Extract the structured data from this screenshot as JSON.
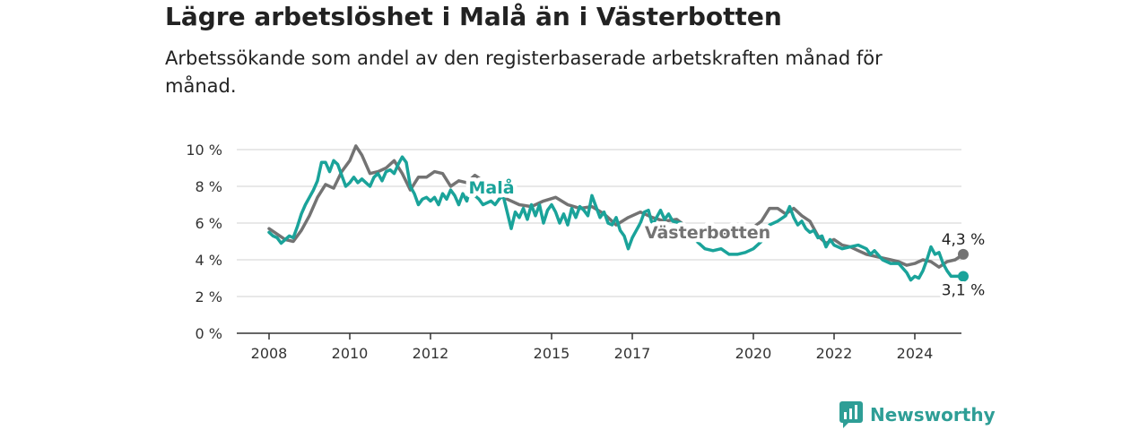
{
  "title": "Lägre arbetslöshet i Malå än i Västerbotten",
  "subtitle": "Arbetssökande som andel av den registerbaserade arbetskraften månad för månad.",
  "brand": "Newsworthy",
  "colors": {
    "mala": "#1aa39a",
    "vasterbotten": "#737373",
    "grid": "#d9d9d9",
    "axis": "#333333"
  },
  "chart_data": {
    "type": "line",
    "x_unit": "year",
    "xlim": [
      2007.5,
      2025.9
    ],
    "ylim": [
      0,
      10
    ],
    "y_ticks": [
      "0 %",
      "2 %",
      "4 %",
      "6 %",
      "8 %",
      "10 %"
    ],
    "x_ticks": [
      "2008",
      "2010",
      "2012",
      "2015",
      "2017",
      "2020",
      "2022",
      "2024"
    ],
    "grid": true,
    "series": [
      {
        "name": "Västerbotten",
        "color_key": "vasterbotten",
        "end_label": "4,3 %",
        "points": [
          [
            2008.0,
            5.7
          ],
          [
            2008.2,
            5.4
          ],
          [
            2008.4,
            5.1
          ],
          [
            2008.6,
            5.0
          ],
          [
            2008.8,
            5.6
          ],
          [
            2009.0,
            6.4
          ],
          [
            2009.2,
            7.4
          ],
          [
            2009.4,
            8.1
          ],
          [
            2009.6,
            7.9
          ],
          [
            2009.8,
            8.8
          ],
          [
            2010.0,
            9.4
          ],
          [
            2010.15,
            10.2
          ],
          [
            2010.3,
            9.7
          ],
          [
            2010.5,
            8.7
          ],
          [
            2010.7,
            8.8
          ],
          [
            2010.9,
            9.0
          ],
          [
            2011.1,
            9.4
          ],
          [
            2011.3,
            8.7
          ],
          [
            2011.5,
            7.8
          ],
          [
            2011.7,
            8.5
          ],
          [
            2011.9,
            8.5
          ],
          [
            2012.1,
            8.8
          ],
          [
            2012.3,
            8.7
          ],
          [
            2012.5,
            8.0
          ],
          [
            2012.7,
            8.3
          ],
          [
            2012.9,
            8.2
          ],
          [
            2013.1,
            8.6
          ],
          [
            2013.3,
            8.3
          ],
          [
            2013.6,
            7.7
          ],
          [
            2013.9,
            7.3
          ],
          [
            2014.2,
            7.0
          ],
          [
            2014.5,
            6.9
          ],
          [
            2014.8,
            7.2
          ],
          [
            2015.1,
            7.4
          ],
          [
            2015.4,
            7.0
          ],
          [
            2015.7,
            6.8
          ],
          [
            2016.0,
            6.9
          ],
          [
            2016.3,
            6.5
          ],
          [
            2016.6,
            5.9
          ],
          [
            2016.9,
            6.3
          ],
          [
            2017.2,
            6.6
          ],
          [
            2017.5,
            6.3
          ],
          [
            2017.8,
            6.1
          ],
          [
            2018.1,
            6.2
          ],
          [
            2018.4,
            5.7
          ],
          [
            2018.7,
            5.4
          ],
          [
            2019.0,
            5.3
          ],
          [
            2019.3,
            5.4
          ],
          [
            2019.6,
            5.5
          ],
          [
            2019.9,
            5.6
          ],
          [
            2020.2,
            6.1
          ],
          [
            2020.4,
            6.8
          ],
          [
            2020.6,
            6.8
          ],
          [
            2020.8,
            6.5
          ],
          [
            2021.0,
            6.8
          ],
          [
            2021.2,
            6.4
          ],
          [
            2021.4,
            6.1
          ],
          [
            2021.6,
            5.3
          ],
          [
            2021.8,
            4.9
          ],
          [
            2022.0,
            5.1
          ],
          [
            2022.2,
            4.8
          ],
          [
            2022.4,
            4.7
          ],
          [
            2022.6,
            4.5
          ],
          [
            2022.8,
            4.3
          ],
          [
            2023.0,
            4.2
          ],
          [
            2023.2,
            4.1
          ],
          [
            2023.4,
            4.0
          ],
          [
            2023.6,
            3.9
          ],
          [
            2023.8,
            3.7
          ],
          [
            2024.0,
            3.8
          ],
          [
            2024.2,
            4.0
          ],
          [
            2024.4,
            3.9
          ],
          [
            2024.6,
            3.6
          ],
          [
            2024.8,
            3.9
          ],
          [
            2025.0,
            4.0
          ],
          [
            2025.2,
            4.3
          ]
        ]
      },
      {
        "name": "Malå",
        "color_key": "mala",
        "end_label": "3,1 %",
        "points": [
          [
            2008.0,
            5.5
          ],
          [
            2008.1,
            5.3
          ],
          [
            2008.2,
            5.2
          ],
          [
            2008.3,
            4.9
          ],
          [
            2008.4,
            5.1
          ],
          [
            2008.5,
            5.3
          ],
          [
            2008.6,
            5.2
          ],
          [
            2008.7,
            5.8
          ],
          [
            2008.8,
            6.5
          ],
          [
            2008.9,
            7.0
          ],
          [
            2009.0,
            7.4
          ],
          [
            2009.1,
            7.8
          ],
          [
            2009.2,
            8.3
          ],
          [
            2009.3,
            9.3
          ],
          [
            2009.4,
            9.3
          ],
          [
            2009.5,
            8.8
          ],
          [
            2009.6,
            9.4
          ],
          [
            2009.7,
            9.2
          ],
          [
            2009.8,
            8.6
          ],
          [
            2009.9,
            8.0
          ],
          [
            2010.0,
            8.2
          ],
          [
            2010.1,
            8.5
          ],
          [
            2010.2,
            8.2
          ],
          [
            2010.3,
            8.4
          ],
          [
            2010.4,
            8.2
          ],
          [
            2010.5,
            8.0
          ],
          [
            2010.6,
            8.5
          ],
          [
            2010.7,
            8.7
          ],
          [
            2010.8,
            8.3
          ],
          [
            2010.9,
            8.8
          ],
          [
            2011.0,
            8.9
          ],
          [
            2011.1,
            8.7
          ],
          [
            2011.2,
            9.2
          ],
          [
            2011.3,
            9.6
          ],
          [
            2011.4,
            9.3
          ],
          [
            2011.5,
            8.0
          ],
          [
            2011.6,
            7.6
          ],
          [
            2011.7,
            7.0
          ],
          [
            2011.8,
            7.3
          ],
          [
            2011.9,
            7.4
          ],
          [
            2012.0,
            7.2
          ],
          [
            2012.1,
            7.4
          ],
          [
            2012.2,
            7.0
          ],
          [
            2012.3,
            7.6
          ],
          [
            2012.4,
            7.3
          ],
          [
            2012.5,
            7.8
          ],
          [
            2012.6,
            7.5
          ],
          [
            2012.7,
            7.0
          ],
          [
            2012.8,
            7.6
          ],
          [
            2012.9,
            7.2
          ],
          [
            2013.0,
            8.1
          ],
          [
            2013.1,
            7.5
          ],
          [
            2013.2,
            7.3
          ],
          [
            2013.3,
            7.0
          ],
          [
            2013.4,
            7.1
          ],
          [
            2013.5,
            7.2
          ],
          [
            2013.6,
            7.0
          ],
          [
            2013.7,
            7.3
          ],
          [
            2013.8,
            7.5
          ],
          [
            2013.9,
            6.6
          ],
          [
            2014.0,
            5.7
          ],
          [
            2014.1,
            6.6
          ],
          [
            2014.2,
            6.3
          ],
          [
            2014.3,
            6.8
          ],
          [
            2014.4,
            6.2
          ],
          [
            2014.5,
            7.0
          ],
          [
            2014.6,
            6.4
          ],
          [
            2014.7,
            7.0
          ],
          [
            2014.8,
            6.0
          ],
          [
            2014.9,
            6.7
          ],
          [
            2015.0,
            7.0
          ],
          [
            2015.1,
            6.6
          ],
          [
            2015.2,
            6.0
          ],
          [
            2015.3,
            6.5
          ],
          [
            2015.4,
            5.9
          ],
          [
            2015.5,
            6.8
          ],
          [
            2015.6,
            6.3
          ],
          [
            2015.7,
            6.9
          ],
          [
            2015.8,
            6.7
          ],
          [
            2015.9,
            6.4
          ],
          [
            2016.0,
            7.5
          ],
          [
            2016.1,
            6.9
          ],
          [
            2016.2,
            6.3
          ],
          [
            2016.3,
            6.6
          ],
          [
            2016.4,
            6.0
          ],
          [
            2016.5,
            5.9
          ],
          [
            2016.6,
            6.3
          ],
          [
            2016.7,
            5.6
          ],
          [
            2016.8,
            5.3
          ],
          [
            2016.9,
            4.6
          ],
          [
            2017.0,
            5.2
          ],
          [
            2017.1,
            5.6
          ],
          [
            2017.2,
            6.0
          ],
          [
            2017.3,
            6.6
          ],
          [
            2017.4,
            6.7
          ],
          [
            2017.5,
            5.9
          ],
          [
            2017.6,
            6.3
          ],
          [
            2017.7,
            6.7
          ],
          [
            2017.8,
            6.2
          ],
          [
            2017.9,
            6.5
          ],
          [
            2018.0,
            6.1
          ],
          [
            2018.2,
            6.0
          ],
          [
            2018.4,
            5.5
          ],
          [
            2018.6,
            5.0
          ],
          [
            2018.8,
            4.6
          ],
          [
            2019.0,
            4.5
          ],
          [
            2019.2,
            4.6
          ],
          [
            2019.4,
            4.3
          ],
          [
            2019.6,
            4.3
          ],
          [
            2019.8,
            4.4
          ],
          [
            2020.0,
            4.6
          ],
          [
            2020.2,
            5.0
          ],
          [
            2020.4,
            5.9
          ],
          [
            2020.6,
            6.1
          ],
          [
            2020.8,
            6.4
          ],
          [
            2020.9,
            6.9
          ],
          [
            2021.0,
            6.3
          ],
          [
            2021.1,
            5.9
          ],
          [
            2021.2,
            6.1
          ],
          [
            2021.3,
            5.7
          ],
          [
            2021.4,
            5.5
          ],
          [
            2021.5,
            5.6
          ],
          [
            2021.6,
            5.2
          ],
          [
            2021.7,
            5.3
          ],
          [
            2021.8,
            4.7
          ],
          [
            2021.9,
            5.1
          ],
          [
            2022.0,
            4.8
          ],
          [
            2022.2,
            4.6
          ],
          [
            2022.4,
            4.7
          ],
          [
            2022.6,
            4.8
          ],
          [
            2022.8,
            4.6
          ],
          [
            2022.9,
            4.3
          ],
          [
            2023.0,
            4.5
          ],
          [
            2023.2,
            4.0
          ],
          [
            2023.4,
            3.8
          ],
          [
            2023.6,
            3.8
          ],
          [
            2023.8,
            3.3
          ],
          [
            2023.9,
            2.9
          ],
          [
            2024.0,
            3.1
          ],
          [
            2024.1,
            3.0
          ],
          [
            2024.2,
            3.4
          ],
          [
            2024.3,
            4.0
          ],
          [
            2024.4,
            4.7
          ],
          [
            2024.5,
            4.3
          ],
          [
            2024.6,
            4.4
          ],
          [
            2024.7,
            3.8
          ],
          [
            2024.8,
            3.4
          ],
          [
            2024.9,
            3.1
          ],
          [
            2025.0,
            3.1
          ],
          [
            2025.2,
            3.1
          ]
        ]
      }
    ],
    "annotations": [
      {
        "text": "Malå",
        "series": "Malå"
      },
      {
        "text": "Västerbotten",
        "series": "Västerbotten"
      }
    ]
  }
}
